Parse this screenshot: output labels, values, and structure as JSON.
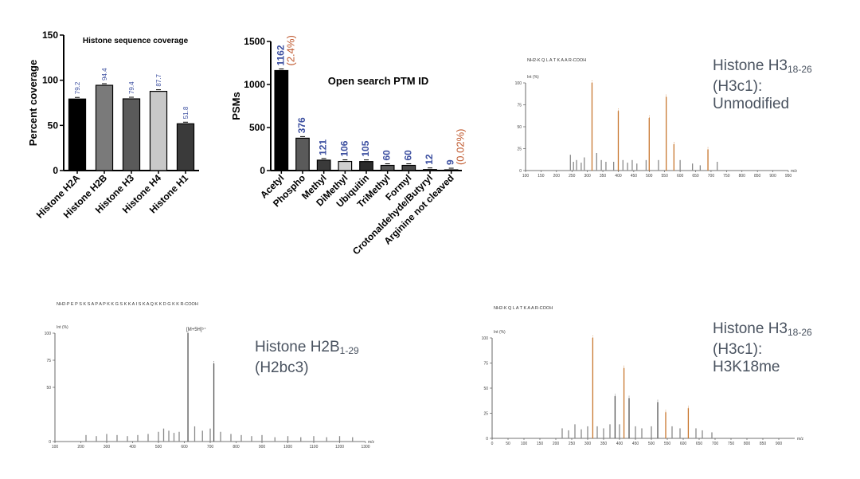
{
  "chart_data": [
    {
      "type": "bar",
      "title": "Histone sequence coverage",
      "ylabel": "Percent coverage",
      "xlabel": "",
      "ylim": [
        0,
        150
      ],
      "yticks": [
        0,
        50,
        100,
        150
      ],
      "categories": [
        "Histone H2A",
        "Histone H2B",
        "Histone H3",
        "Histone H4",
        "Histone H1"
      ],
      "values": [
        79.2,
        94.4,
        79.4,
        87.7,
        51.8
      ],
      "value_labels": [
        "79.2",
        "94.4",
        "79.4",
        "87.7",
        "51.8"
      ],
      "bar_colors": [
        "#000000",
        "#7a7a7a",
        "#5a5a5a",
        "#c8c8c8",
        "#3a3a3a"
      ],
      "label_color": "#3c4fa0"
    },
    {
      "type": "bar",
      "title": "Open search PTM ID",
      "ylabel": "PSMs",
      "xlabel": "",
      "ylim": [
        0,
        1500
      ],
      "yticks": [
        0,
        500,
        1000,
        1500
      ],
      "categories": [
        "Acetyl",
        "Phospho",
        "Methyl",
        "DiMethyl",
        "Ubiquitin",
        "TriMethyl",
        "Formyl",
        "Crotonaldehyde/Butyryl",
        "Arginine not cleaved"
      ],
      "values": [
        1162,
        376,
        121,
        106,
        105,
        60,
        60,
        12,
        9
      ],
      "value_labels": [
        "1162",
        "376",
        "121",
        "106",
        "105",
        "60",
        "60",
        "12",
        "9"
      ],
      "annotations": [
        {
          "category": "Acetyl",
          "text": "(2.4%)"
        },
        {
          "category": "Arginine not cleaved",
          "text": "(0.02%)"
        }
      ],
      "bar_colors": [
        "#000000",
        "#5a5a5a",
        "#3a3a3a",
        "#d0d0d0",
        "#2a2a2a",
        "#5a5a5a",
        "#4a4a4a",
        "#8a8a8a",
        "#aaaaaa"
      ],
      "label_color": "#3c4fa0",
      "annotation_color": "#c05a30"
    },
    {
      "type": "bar",
      "subtype": "mass-spectrum",
      "title_main": "Histone H3",
      "title_sub": "18-26",
      "title_line2": "(H3c1):",
      "title_line3": "Unmodified",
      "sequence_label": "NH2-K Q L A T K A A R-COOH",
      "ylabel": "Int (%)",
      "xlabel": "m/z",
      "ylim": [
        0,
        100
      ],
      "yticks": [
        0,
        25,
        50,
        75,
        100
      ],
      "xlim": [
        100,
        950
      ],
      "xticks": [
        100,
        150,
        200,
        250,
        300,
        350,
        400,
        450,
        500,
        550,
        600,
        650,
        700,
        750,
        800,
        850,
        900,
        950
      ],
      "x": [
        245,
        255,
        265,
        280,
        290,
        315,
        330,
        345,
        360,
        385,
        400,
        415,
        430,
        445,
        460,
        490,
        500,
        530,
        555,
        580,
        600,
        640,
        665,
        690,
        720
      ],
      "values": [
        18,
        10,
        12,
        9,
        15,
        100,
        20,
        12,
        10,
        10,
        68,
        12,
        9,
        12,
        8,
        12,
        60,
        12,
        84,
        30,
        12,
        8,
        6,
        24,
        10
      ],
      "peak_colors": [
        "#8a8a8a",
        "#8a8a8a",
        "#8a8a8a",
        "#8a8a8a",
        "#8a8a8a",
        "#c8772e",
        "#8a8a8a",
        "#8a8a8a",
        "#8a8a8a",
        "#8a8a8a",
        "#c8772e",
        "#8a8a8a",
        "#8a8a8a",
        "#8a8a8a",
        "#8a8a8a",
        "#8a8a8a",
        "#c8772e",
        "#8a8a8a",
        "#c8772e",
        "#c8772e",
        "#8a8a8a",
        "#8a8a8a",
        "#8a8a8a",
        "#c8772e",
        "#8a8a8a"
      ]
    },
    {
      "type": "bar",
      "subtype": "mass-spectrum",
      "title_main": "Histone H2B",
      "title_sub": "1-29",
      "title_line2": "(H2bc3)",
      "sequence_label": "NH2-P E P S K S A P A P K K G S K K A I S K A Q K K D G K K R-COOH",
      "ylabel": "Int (%)",
      "xlabel": "m/z",
      "ylim": [
        0,
        100
      ],
      "yticks": [
        0,
        50,
        75,
        100
      ],
      "xlim": [
        100,
        1300
      ],
      "xticks": [
        100,
        200,
        300,
        400,
        500,
        600,
        700,
        800,
        900,
        1000,
        1100,
        1200,
        1300
      ],
      "x": [
        220,
        260,
        300,
        340,
        380,
        420,
        460,
        500,
        520,
        540,
        560,
        580,
        614,
        640,
        670,
        700,
        714,
        740,
        780,
        820,
        860,
        900,
        950,
        1000,
        1050,
        1100,
        1150,
        1200,
        1250
      ],
      "values": [
        6,
        5,
        7,
        6,
        5,
        6,
        7,
        9,
        12,
        10,
        8,
        9,
        100,
        14,
        10,
        12,
        72,
        9,
        7,
        6,
        5,
        6,
        4,
        5,
        4,
        5,
        4,
        5,
        4
      ],
      "peak_label": "[M+5H]⁵⁺",
      "peak_colors": [
        "#8a8a8a",
        "#8a8a8a",
        "#8a8a8a",
        "#8a8a8a",
        "#8a8a8a",
        "#8a8a8a",
        "#8a8a8a",
        "#8a8a8a",
        "#8a8a8a",
        "#8a8a8a",
        "#8a8a8a",
        "#8a8a8a",
        "#555555",
        "#8a8a8a",
        "#8a8a8a",
        "#8a8a8a",
        "#555555",
        "#8a8a8a",
        "#8a8a8a",
        "#8a8a8a",
        "#8a8a8a",
        "#8a8a8a",
        "#8a8a8a",
        "#8a8a8a",
        "#8a8a8a",
        "#8a8a8a",
        "#8a8a8a",
        "#8a8a8a",
        "#8a8a8a"
      ]
    },
    {
      "type": "bar",
      "subtype": "mass-spectrum",
      "title_main": "Histone H3",
      "title_sub": "18-26",
      "title_line2": "(H3c1):",
      "title_line3": "H3K18me",
      "sequence_label": "NH2-K Q L A T K A A R-COOH",
      "ylabel": "Int (%)",
      "xlabel": "m/z",
      "ylim": [
        0,
        100
      ],
      "yticks": [
        0,
        25,
        50,
        75,
        100
      ],
      "xlim": [
        0,
        950
      ],
      "xticks": [
        0,
        50,
        100,
        150,
        200,
        250,
        300,
        350,
        400,
        450,
        500,
        550,
        600,
        650,
        700,
        750,
        800,
        850,
        900
      ],
      "x": [
        220,
        240,
        260,
        280,
        300,
        316,
        330,
        350,
        370,
        386,
        400,
        414,
        430,
        450,
        470,
        500,
        520,
        545,
        565,
        590,
        616,
        640,
        660,
        690
      ],
      "values": [
        10,
        8,
        14,
        9,
        12,
        100,
        12,
        10,
        14,
        42,
        14,
        70,
        40,
        12,
        10,
        12,
        36,
        26,
        12,
        10,
        30,
        10,
        8,
        6
      ],
      "peak_colors": [
        "#8a8a8a",
        "#8a8a8a",
        "#8a8a8a",
        "#8a8a8a",
        "#8a8a8a",
        "#c8772e",
        "#8a8a8a",
        "#8a8a8a",
        "#8a8a8a",
        "#555555",
        "#8a8a8a",
        "#c8772e",
        "#555555",
        "#8a8a8a",
        "#8a8a8a",
        "#8a8a8a",
        "#555555",
        "#c8772e",
        "#8a8a8a",
        "#8a8a8a",
        "#c8772e",
        "#8a8a8a",
        "#8a8a8a",
        "#8a8a8a"
      ]
    }
  ]
}
